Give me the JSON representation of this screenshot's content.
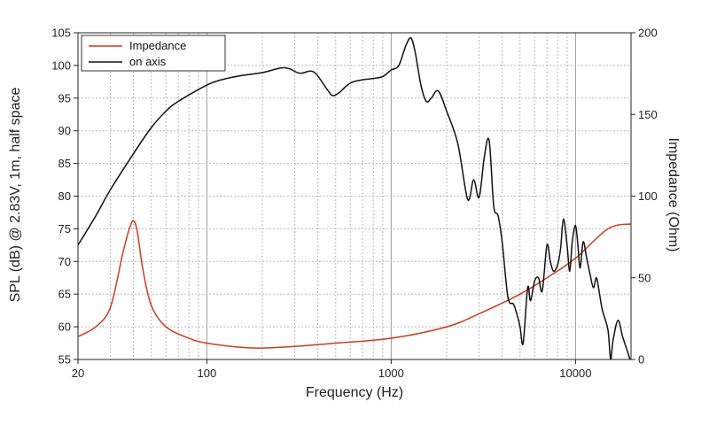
{
  "chart_data": {
    "type": "line",
    "xlabel": "Frequency (Hz)",
    "ylabel": "SPL (dB) @ 2.83V, 1m, half space",
    "y2label": "Impedance (Ohm)",
    "x_scale": "log",
    "xlim": [
      20,
      20000
    ],
    "ylim": [
      55,
      105
    ],
    "y2lim": [
      0,
      200
    ],
    "x_ticks": [
      {
        "value": 20,
        "label": "20"
      },
      {
        "value": 100,
        "label": "100"
      },
      {
        "value": 1000,
        "label": "1000"
      },
      {
        "value": 10000,
        "label": "10000"
      }
    ],
    "y_ticks": [
      55,
      60,
      65,
      70,
      75,
      80,
      85,
      90,
      95,
      100,
      105
    ],
    "y2_ticks": [
      0,
      50,
      100,
      150,
      200
    ],
    "grid": true,
    "legend_position": "top-left",
    "series": [
      {
        "name": "Impedance",
        "axis": "right",
        "color": "#d03a1f",
        "x": [
          20,
          25,
          30,
          35,
          38,
          40,
          42,
          45,
          50,
          60,
          80,
          100,
          150,
          200,
          300,
          500,
          1000,
          2000,
          3000,
          5000,
          7000,
          10000,
          15000,
          20000
        ],
        "y": [
          14,
          20,
          32,
          65,
          80,
          85,
          78,
          55,
          33,
          20,
          13,
          10,
          7.5,
          7,
          8,
          10,
          13,
          20,
          28,
          40,
          50,
          62,
          80,
          83
        ]
      },
      {
        "name": "on axis",
        "axis": "left",
        "color": "#111111",
        "x": [
          20,
          25,
          30,
          40,
          50,
          60,
          70,
          100,
          120,
          150,
          200,
          250,
          280,
          320,
          380,
          450,
          480,
          520,
          600,
          700,
          800,
          900,
          1000,
          1100,
          1200,
          1280,
          1350,
          1450,
          1550,
          1650,
          1800,
          2000,
          2300,
          2600,
          2800,
          3000,
          3200,
          3400,
          3600,
          3800,
          4000,
          4300,
          4600,
          4800,
          5000,
          5200,
          5500,
          5700,
          6000,
          6300,
          6600,
          7000,
          7300,
          7600,
          8000,
          8300,
          8600,
          9000,
          9300,
          9600,
          10000,
          10300,
          10600,
          11000,
          11500,
          12000,
          12500,
          13000,
          13500,
          14000,
          15000,
          15500,
          16000,
          17000,
          18000,
          19000,
          20000
        ],
        "y": [
          72.5,
          77,
          81,
          86.5,
          90.5,
          93,
          94.5,
          97,
          97.8,
          98.4,
          98.9,
          99.6,
          99.5,
          98.8,
          99.0,
          96.3,
          95.4,
          95.8,
          97.3,
          97.8,
          98.0,
          98.3,
          99.3,
          100.0,
          103.0,
          104.2,
          102.0,
          97.0,
          94.5,
          95.0,
          96.1,
          93.0,
          88.0,
          79.5,
          82.5,
          79.8,
          86.0,
          88.5,
          78.5,
          77.0,
          73.0,
          64.5,
          63.5,
          62.0,
          60.0,
          57.5,
          66.0,
          64.0,
          67.0,
          67.5,
          65.5,
          72.5,
          70.0,
          68.5,
          69.5,
          72.0,
          76.5,
          72.5,
          68.5,
          73.0,
          75.5,
          72.5,
          69.0,
          73.0,
          70.5,
          68.0,
          66.0,
          67.5,
          65.0,
          62.5,
          59.5,
          55.0,
          58.0,
          61.0,
          58.5,
          56.5,
          54.5
        ]
      }
    ]
  }
}
